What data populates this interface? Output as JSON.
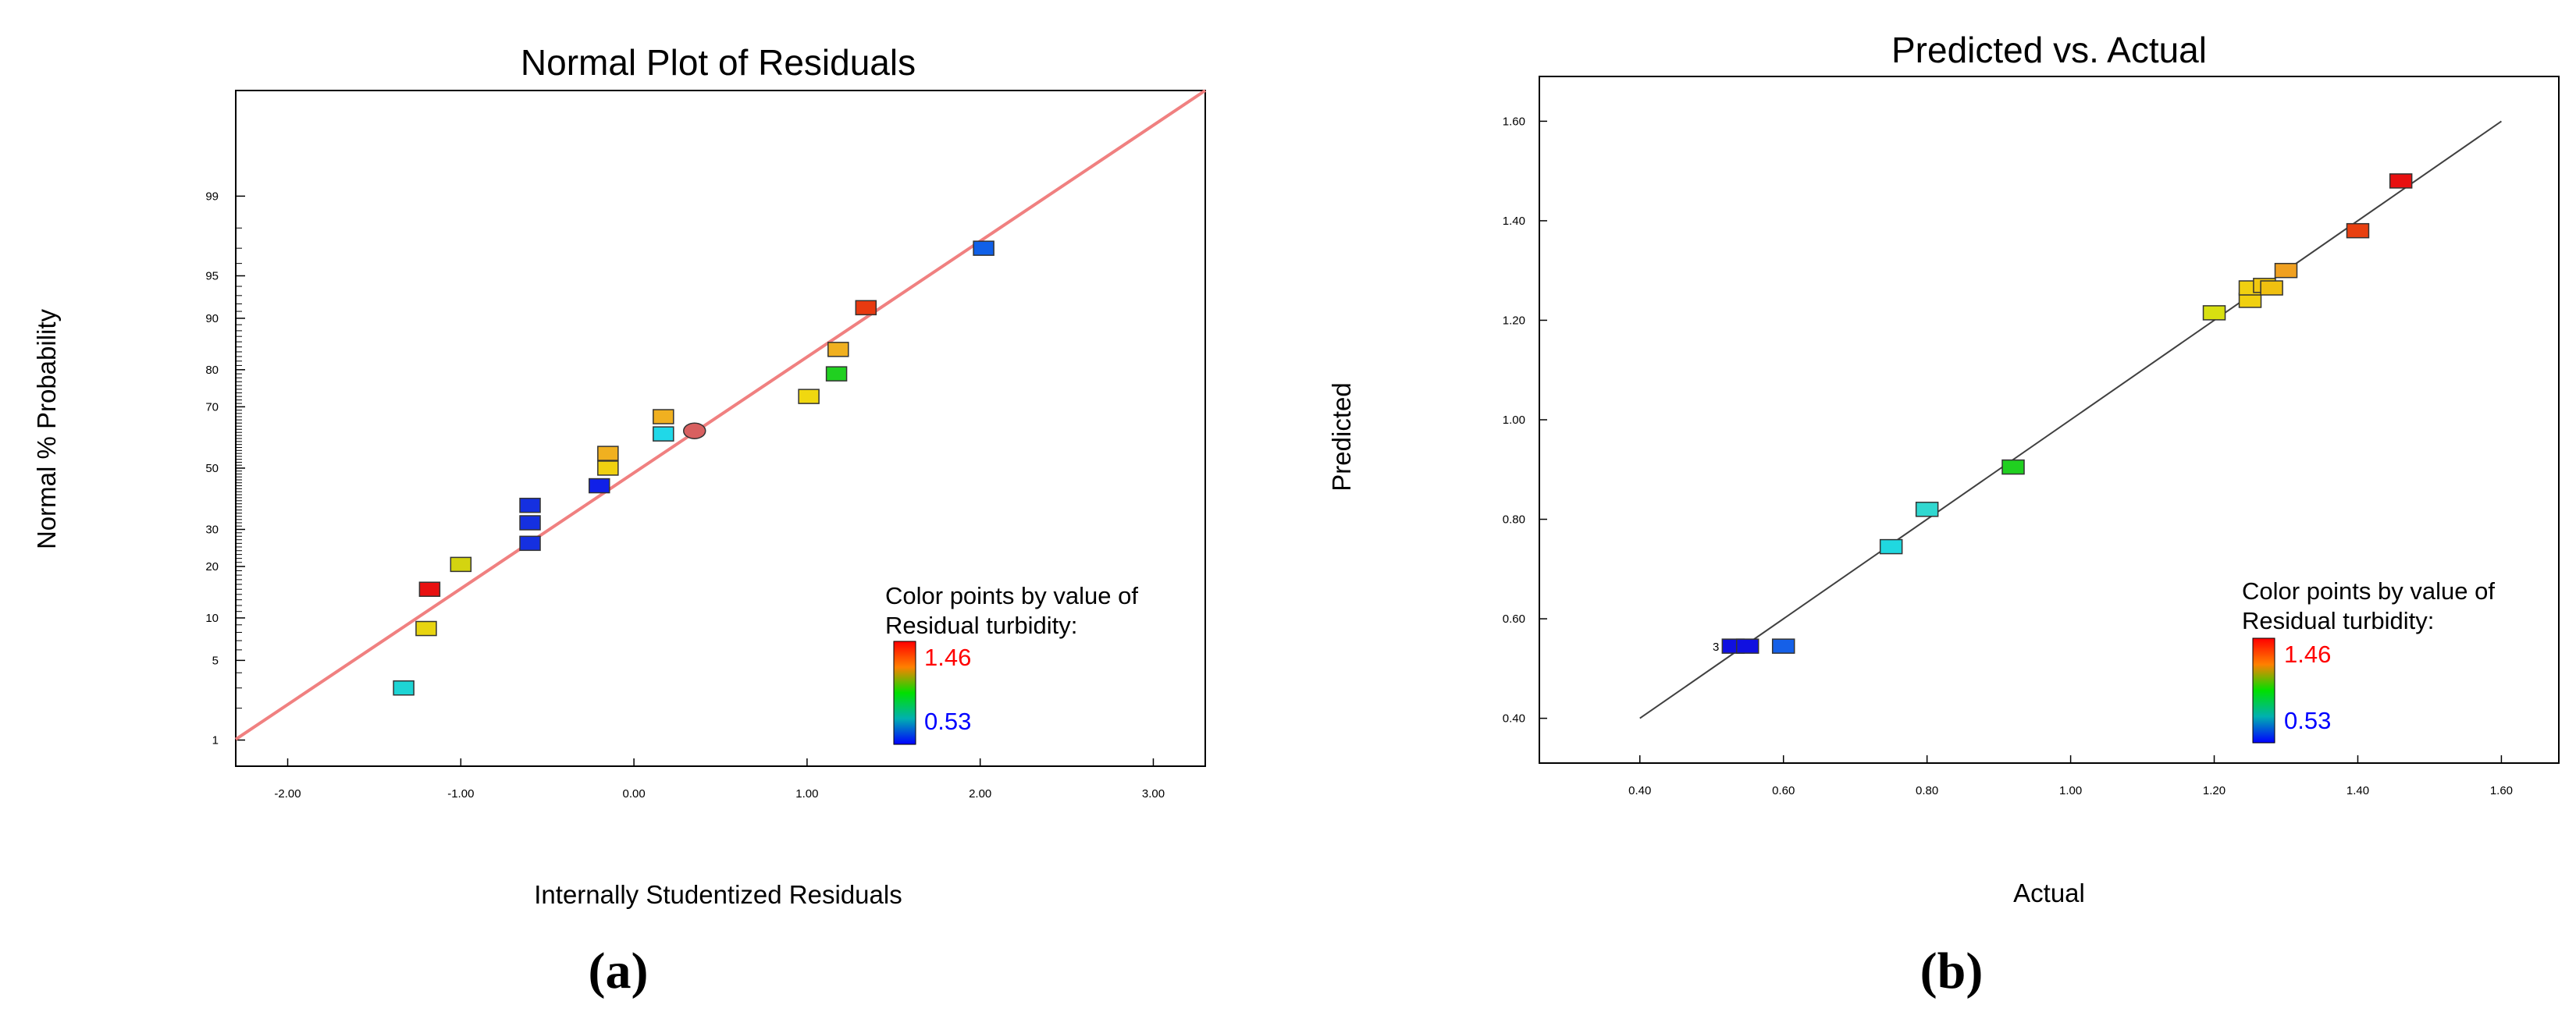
{
  "chart_data": [
    {
      "panel": "a",
      "type": "scatter",
      "title": "Normal Plot of Residuals",
      "xlabel": "Internally Studentized Residuals",
      "ylabel": "Normal % Probability",
      "xlim": [
        -2.3,
        3.3
      ],
      "xticks": [
        -2.0,
        -1.0,
        0.0,
        1.0,
        2.0,
        3.0
      ],
      "xtick_labels": [
        "-2.00",
        "-1.00",
        "0.00",
        "1.00",
        "2.00",
        "3.00"
      ],
      "ylim_z": [
        -2.55,
        3.23
      ],
      "yticks": [
        1,
        5,
        10,
        20,
        30,
        50,
        70,
        80,
        90,
        95,
        99
      ],
      "ytick_labels": [
        "1",
        "5",
        "10",
        "20",
        "30",
        "50",
        "70",
        "80",
        "90",
        "95",
        "99"
      ],
      "fit_line": {
        "x": [
          -2.3,
          3.3
        ],
        "z": [
          -2.32,
          3.23
        ],
        "color": "#F08080"
      },
      "points": [
        {
          "x": -1.33,
          "p": 3,
          "color": "#1DD4D4"
        },
        {
          "x": -1.2,
          "p": 8.5,
          "color": "#E8D410"
        },
        {
          "x": -1.18,
          "p": 15,
          "color": "#E81010"
        },
        {
          "x": -1.0,
          "p": 20.5,
          "color": "#D4D410"
        },
        {
          "x": -0.6,
          "p": 26,
          "color": "#1530E0"
        },
        {
          "x": -0.6,
          "p": 32,
          "color": "#1530E0"
        },
        {
          "x": -0.6,
          "p": 37.5,
          "color": "#1530E0"
        },
        {
          "x": -0.2,
          "p": 44,
          "color": "#1020E8"
        },
        {
          "x": -0.15,
          "p": 50,
          "color": "#F0D010"
        },
        {
          "x": -0.15,
          "p": 55,
          "color": "#F0B020"
        },
        {
          "x": 0.17,
          "p": 61.5,
          "color": "#20D8E8"
        },
        {
          "x": 0.17,
          "p": 67,
          "color": "#F0B020"
        },
        {
          "x": 0.35,
          "p": 62.5,
          "color": "#D86060",
          "shape": "ellipse"
        },
        {
          "x": 1.01,
          "p": 73,
          "color": "#F0D810"
        },
        {
          "x": 1.17,
          "p": 79,
          "color": "#20D020"
        },
        {
          "x": 1.18,
          "p": 84.5,
          "color": "#F0B020"
        },
        {
          "x": 1.34,
          "p": 91.5,
          "color": "#E83A10"
        },
        {
          "x": 2.02,
          "p": 97,
          "color": "#1060E8"
        }
      ],
      "legend": {
        "title_lines": [
          "Color points by value of",
          "Residual turbidity:"
        ],
        "max_label": "1.46",
        "min_label": "0.53",
        "max_color": "#FF0000",
        "min_color": "#0000FF"
      },
      "caption": "(a)"
    },
    {
      "panel": "b",
      "type": "scatter",
      "title": "Predicted vs. Actual",
      "xlabel": "Actual",
      "ylabel": "Predicted",
      "xlim": [
        0.26,
        1.68
      ],
      "ylim": [
        0.31,
        1.69
      ],
      "xticks": [
        0.4,
        0.6,
        0.8,
        1.0,
        1.2,
        1.4,
        1.6
      ],
      "xtick_labels": [
        "0.40",
        "0.60",
        "0.80",
        "1.00",
        "1.20",
        "1.40",
        "1.60"
      ],
      "yticks": [
        0.4,
        0.6,
        0.8,
        1.0,
        1.2,
        1.4,
        1.6
      ],
      "ytick_labels": [
        "0.40",
        "0.60",
        "0.80",
        "1.00",
        "1.20",
        "1.40",
        "1.60"
      ],
      "diagonal": {
        "from": [
          0.4,
          0.4
        ],
        "to": [
          1.6,
          1.6
        ],
        "color": "#404040"
      },
      "points": [
        {
          "x": 0.53,
          "y": 0.545,
          "color": "#1010E0",
          "label": "3"
        },
        {
          "x": 0.55,
          "y": 0.545,
          "color": "#1010E0"
        },
        {
          "x": 0.6,
          "y": 0.545,
          "color": "#1560E8"
        },
        {
          "x": 0.75,
          "y": 0.745,
          "color": "#20D8E0"
        },
        {
          "x": 0.8,
          "y": 0.82,
          "color": "#30D8D0"
        },
        {
          "x": 0.92,
          "y": 0.905,
          "color": "#20D020"
        },
        {
          "x": 1.2,
          "y": 1.215,
          "color": "#D8E010"
        },
        {
          "x": 1.25,
          "y": 1.24,
          "color": "#F0D010"
        },
        {
          "x": 1.25,
          "y": 1.265,
          "color": "#F0D010"
        },
        {
          "x": 1.27,
          "y": 1.27,
          "color": "#F0C810"
        },
        {
          "x": 1.28,
          "y": 1.265,
          "color": "#F0C010"
        },
        {
          "x": 1.3,
          "y": 1.3,
          "color": "#F0A020"
        },
        {
          "x": 1.4,
          "y": 1.38,
          "color": "#E84010"
        },
        {
          "x": 1.46,
          "y": 1.48,
          "color": "#E81010"
        }
      ],
      "legend": {
        "title_lines": [
          "Color points by value of",
          "Residual turbidity:"
        ],
        "max_label": "1.46",
        "min_label": "0.53",
        "max_color": "#FF0000",
        "min_color": "#0000FF"
      },
      "caption": "(b)"
    }
  ]
}
